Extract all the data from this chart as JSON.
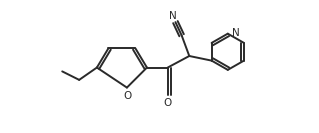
{
  "bg_color": "#ffffff",
  "line_color": "#2a2a2a",
  "line_width": 1.4,
  "figsize": [
    3.19,
    1.33
  ],
  "dpi": 100,
  "xlim": [
    0,
    319
  ],
  "ylim": [
    0,
    133
  ]
}
